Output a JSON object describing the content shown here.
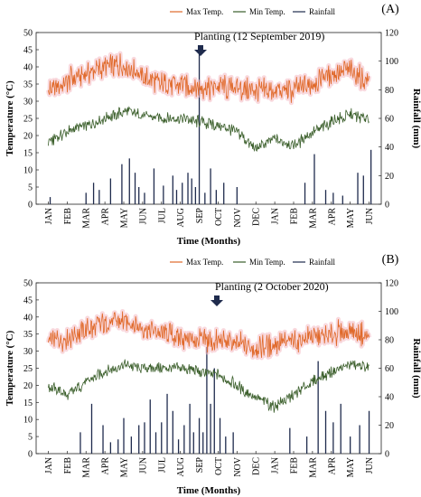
{
  "colors": {
    "max_temp": "#e0692a",
    "min_temp": "#3a5e2a",
    "rainfall": "#1f2b4d",
    "max_glow": "#f4b9c3"
  },
  "chart_data": [
    {
      "type": "line",
      "panel_label": "(A)",
      "legend": [
        "Max Temp.",
        "Min Temp.",
        "Rainfall"
      ],
      "legend_placement": "top-right",
      "annotation": "Planting (12 September 2019)",
      "annotation_month": "SEP",
      "xlabel": "Time (Months)",
      "ylabel": "Temperature (°C)",
      "y2label": "Rainfall (mm)",
      "ylim": [
        0,
        50
      ],
      "y_ticks": [
        "0",
        "5",
        "10",
        "15",
        "20",
        "25",
        "30",
        "35",
        "40",
        "45",
        "50"
      ],
      "y2lim": [
        0,
        120
      ],
      "y2_ticks": [
        "0",
        "20",
        "40",
        "60",
        "80",
        "100",
        "120"
      ],
      "x_ticks": [
        "JAN",
        "FEB",
        "MAR",
        "APR",
        "MAY",
        "JUN",
        "JUL",
        "AUG",
        "SEP",
        "OCT",
        "NOV",
        "DEC",
        "JAN",
        "FEB",
        "MAR",
        "APR",
        "MAY",
        "JUN"
      ],
      "series": [
        {
          "name": "Max Temp.",
          "x": [
            0,
            1,
            2,
            3,
            4,
            5,
            6,
            7,
            8,
            9,
            10,
            11,
            12,
            13,
            14,
            15,
            16,
            17
          ],
          "values": [
            33,
            36,
            38,
            40,
            41,
            37,
            35,
            35,
            34,
            34,
            34,
            33,
            33,
            33,
            35,
            38,
            39,
            35
          ]
        },
        {
          "name": "Min Temp.",
          "x": [
            0,
            1,
            2,
            3,
            4,
            5,
            6,
            7,
            8,
            9,
            10,
            11,
            12,
            13,
            14,
            15,
            16,
            17
          ],
          "values": [
            18,
            21,
            23,
            25,
            27,
            26,
            25,
            25,
            24,
            23,
            21,
            16,
            19,
            17,
            21,
            24,
            26,
            25
          ]
        },
        {
          "name": "Rainfall",
          "x": [
            0.6,
            2.5,
            2.9,
            3.2,
            3.8,
            4.4,
            4.8,
            5.1,
            5.3,
            5.6,
            6.1,
            6.6,
            7.1,
            7.3,
            7.6,
            7.9,
            8.1,
            8.3,
            8.5,
            8.8,
            9.1,
            9.4,
            9.8,
            10.5,
            14.1,
            14.6,
            15.2,
            15.6,
            16.1,
            16.9,
            17.2,
            17.6
          ],
          "values": [
            5,
            8,
            15,
            10,
            18,
            28,
            32,
            22,
            12,
            8,
            25,
            13,
            20,
            10,
            15,
            22,
            18,
            12,
            110,
            8,
            25,
            10,
            15,
            12,
            15,
            35,
            10,
            8,
            6,
            22,
            20,
            38
          ]
        }
      ],
      "grid": false
    },
    {
      "type": "line",
      "panel_label": "(B)",
      "legend": [
        "Max Temp.",
        "Min Temp.",
        "Rainfall"
      ],
      "legend_placement": "top-right",
      "annotation": "Planting (2 October 2020)",
      "annotation_month": "OCT",
      "xlabel": "Time (Months)",
      "ylabel": "Temperature (°C)",
      "y2label": "Rainfall (mm)",
      "ylim": [
        0,
        50
      ],
      "y_ticks": [
        "0",
        "5",
        "10",
        "15",
        "20",
        "25",
        "30",
        "35",
        "40",
        "45",
        "50"
      ],
      "y2lim": [
        0,
        120
      ],
      "y2_ticks": [
        "0",
        "20",
        "40",
        "60",
        "80",
        "100",
        "120"
      ],
      "x_ticks": [
        "JAN",
        "FEB",
        "MAR",
        "APR",
        "MAY",
        "JUN",
        "JUL",
        "AUG",
        "SEP",
        "OCT",
        "NOV",
        "DEC",
        "JAN",
        "FEB",
        "MAR",
        "APR",
        "MAY",
        "JUN"
      ],
      "series": [
        {
          "name": "Max Temp.",
          "x": [
            0,
            1,
            2,
            3,
            4,
            5,
            6,
            7,
            8,
            9,
            10,
            11,
            12,
            13,
            14,
            15,
            16,
            17
          ],
          "values": [
            33,
            34,
            36,
            38,
            39,
            37,
            35,
            34,
            33,
            33,
            32,
            31,
            32,
            33,
            34,
            35,
            36,
            34
          ]
        },
        {
          "name": "Min Temp.",
          "x": [
            0,
            1,
            2,
            3,
            4,
            5,
            6,
            7,
            8,
            9,
            10,
            11,
            12,
            13,
            14,
            15,
            16,
            17
          ],
          "values": [
            20,
            17,
            21,
            24,
            26,
            25,
            25,
            25,
            24,
            23,
            20,
            16,
            14,
            17,
            21,
            24,
            26,
            25
          ]
        },
        {
          "name": "Rainfall",
          "x": [
            2.2,
            2.8,
            3.4,
            3.8,
            4.2,
            4.5,
            4.9,
            5.3,
            5.6,
            5.9,
            6.2,
            6.5,
            6.8,
            7.1,
            7.4,
            7.7,
            8.0,
            8.2,
            8.5,
            8.7,
            8.9,
            9.1,
            9.3,
            9.6,
            9.9,
            10.3,
            13.3,
            14.2,
            14.8,
            15.2,
            15.6,
            16.0,
            16.5,
            17.0,
            17.5
          ],
          "values": [
            15,
            35,
            20,
            8,
            10,
            25,
            12,
            20,
            22,
            38,
            15,
            22,
            42,
            30,
            10,
            20,
            35,
            15,
            25,
            15,
            75,
            35,
            60,
            25,
            12,
            15,
            18,
            12,
            65,
            30,
            22,
            35,
            12,
            20,
            30
          ]
        }
      ],
      "grid": false
    }
  ]
}
